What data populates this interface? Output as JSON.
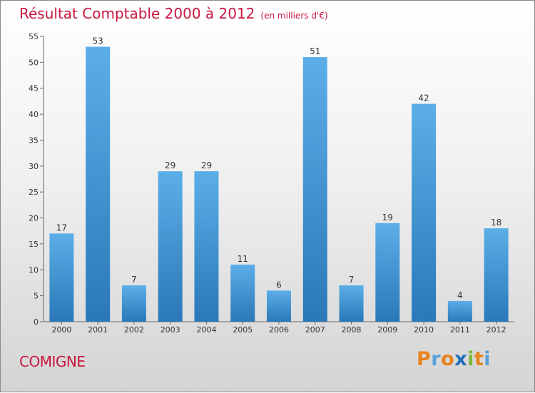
{
  "header": {
    "title": "Résultat Comptable 2000 à 2012",
    "unit": "(en milliers d'€)"
  },
  "footer": {
    "city": "COMIGNE",
    "logo": "Proxiti"
  },
  "colors": {
    "title": "#c8163f",
    "bar_top": "#5caee8",
    "bar_bottom": "#2a78b8",
    "logo_letters": [
      "#e8821e",
      "#5aa1d8",
      "#e8821e",
      "#1f6fb8",
      "#7ab83a",
      "#e8821e",
      "#5aa1d8"
    ]
  },
  "chart_data": {
    "type": "bar",
    "title": "Résultat Comptable 2000 à 2012",
    "subtitle": "(en milliers d'€)",
    "categories": [
      "2000",
      "2001",
      "2002",
      "2003",
      "2004",
      "2005",
      "2006",
      "2007",
      "2008",
      "2009",
      "2010",
      "2011",
      "2012"
    ],
    "values": [
      17,
      53,
      7,
      29,
      29,
      11,
      6,
      51,
      7,
      19,
      42,
      4,
      18
    ],
    "ylim": [
      0,
      55
    ],
    "yticks": [
      0,
      5,
      10,
      15,
      20,
      25,
      30,
      35,
      40,
      45,
      50,
      55
    ],
    "grid": false,
    "data_labels": true
  }
}
